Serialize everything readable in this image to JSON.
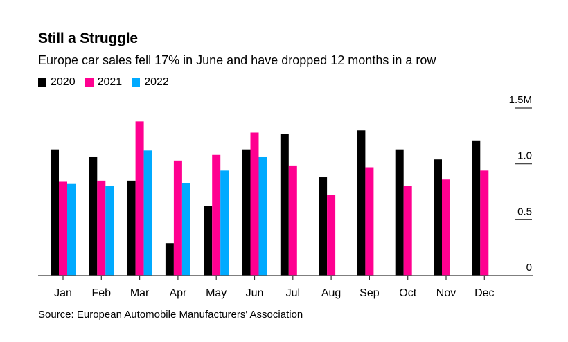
{
  "chart_data": {
    "type": "bar",
    "title": "Still a Struggle",
    "subtitle": "Europe car sales fell 17% in June and have dropped 12 months in a row",
    "xlabel": "",
    "ylabel": "",
    "categories": [
      "Jan",
      "Feb",
      "Mar",
      "Apr",
      "May",
      "Jun",
      "Jul",
      "Aug",
      "Sep",
      "Oct",
      "Nov",
      "Dec"
    ],
    "series": [
      {
        "name": "2020",
        "color": "#000000",
        "values": [
          1.13,
          1.06,
          0.85,
          0.29,
          0.62,
          1.13,
          1.27,
          0.88,
          1.3,
          1.13,
          1.04,
          1.21
        ]
      },
      {
        "name": "2021",
        "color": "#ff0090",
        "values": [
          0.84,
          0.85,
          1.38,
          1.03,
          1.08,
          1.28,
          0.98,
          0.72,
          0.97,
          0.8,
          0.86,
          0.94
        ]
      },
      {
        "name": "2022",
        "color": "#00aaff",
        "values": [
          0.82,
          0.8,
          1.12,
          0.83,
          0.94,
          1.06,
          null,
          null,
          null,
          null,
          null,
          null
        ]
      }
    ],
    "yticks": [
      0,
      0.5,
      1.0,
      1.5
    ],
    "ytick_labels": [
      "0",
      "0.5",
      "1.0",
      "1.5M"
    ],
    "ylim": [
      0,
      1.5
    ],
    "units": "millions of cars",
    "legend_position": "top-left",
    "yaxis_position": "right",
    "grid": false,
    "source": "Source: European Automobile Manufacturers' Association"
  }
}
